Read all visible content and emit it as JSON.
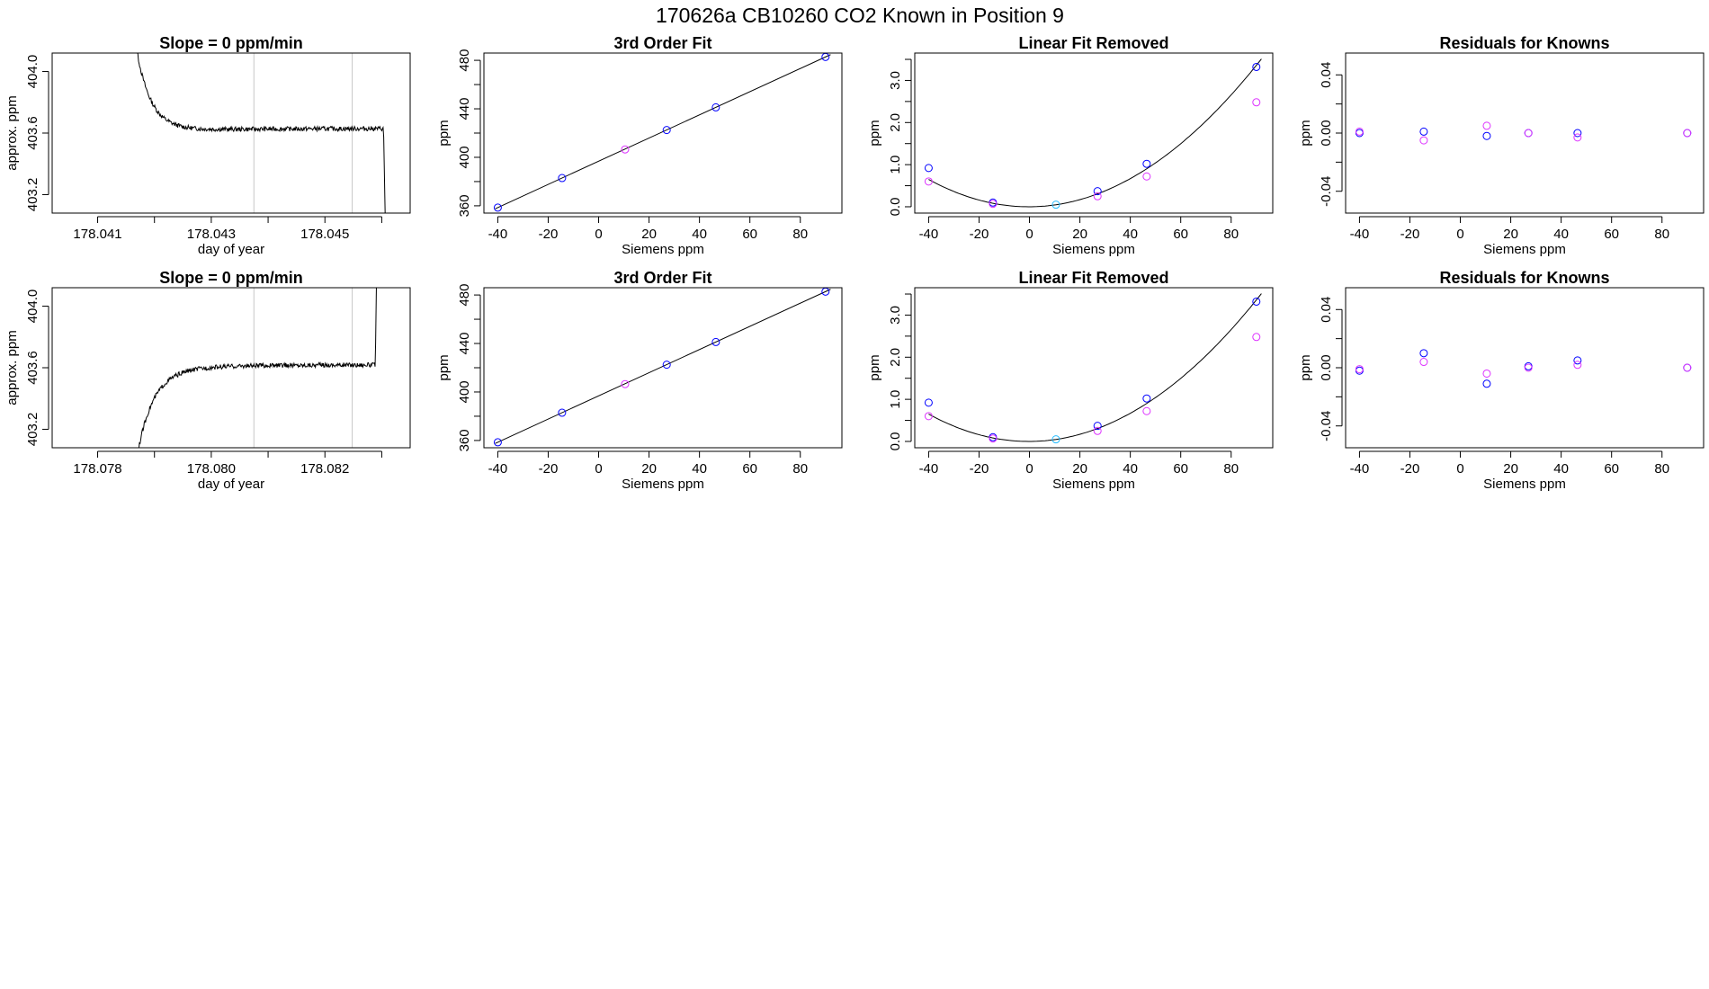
{
  "page": {
    "title": "170626a     CB10260    CO2 Known in Position  9"
  },
  "colors": {
    "axis": "#000000",
    "trace": "#000000",
    "marker_line": "#c8c8c8",
    "point_a": "#0000ff",
    "point_b": "#dd33ff",
    "point_c": "#22bbff"
  },
  "chart_data": [
    {
      "type": "line",
      "title": "Slope =  0  ppm/min",
      "xlabel": "day of year",
      "ylabel": "approx. ppm",
      "xlim": [
        178.0402,
        178.0465
      ],
      "ylim": [
        403.08,
        404.12
      ],
      "xticks": [
        178.041,
        178.042,
        178.043,
        178.044,
        178.045,
        178.046
      ],
      "xtick_labels": [
        "178.041",
        "",
        "178.043",
        "",
        "178.045",
        ""
      ],
      "yticks": [
        403.2,
        403.6,
        404.0
      ],
      "ytick_labels": [
        "403.2",
        "403.6",
        "404.0"
      ],
      "vlines": [
        178.04375,
        178.04548
      ],
      "trace_profile": "decay",
      "trace_steady": 403.63,
      "trace_start": 178.0415,
      "trace_end": 178.0461
    },
    {
      "type": "scatter",
      "title": "3rd Order Fit",
      "xlabel": "Siemens ppm",
      "ylabel": "ppm",
      "xlim": [
        -45.5,
        96.5
      ],
      "ylim": [
        354,
        486
      ],
      "xticks": [
        -40,
        -20,
        0,
        20,
        40,
        60,
        80
      ],
      "xtick_labels": [
        "-40",
        "-20",
        "0",
        "20",
        "40",
        "60",
        "80"
      ],
      "yticks": [
        360,
        380,
        400,
        420,
        440,
        460,
        480
      ],
      "ytick_labels": [
        "360",
        "",
        "400",
        "",
        "440",
        "",
        "480"
      ],
      "fit": {
        "kind": "line",
        "x0": -41,
        "y0": 357.6,
        "x1": 92,
        "y1": 484.7
      },
      "series": [
        {
          "color": "point_a",
          "points": [
            [
              -40,
              358.5
            ],
            [
              -14.5,
              382.9
            ],
            [
              27,
              422.5
            ],
            [
              46.5,
              441.2
            ],
            [
              90,
              482.8
            ]
          ]
        },
        {
          "color": "point_b",
          "points": [
            [
              10.5,
              406.5
            ]
          ]
        }
      ]
    },
    {
      "type": "scatter",
      "title": "Linear Fit Removed",
      "xlabel": "Siemens ppm",
      "ylabel": "ppm",
      "xlim": [
        -45.5,
        96.5
      ],
      "ylim": [
        -0.15,
        3.65
      ],
      "xticks": [
        -40,
        -20,
        0,
        20,
        40,
        60,
        80
      ],
      "xtick_labels": [
        "-40",
        "-20",
        "0",
        "20",
        "40",
        "60",
        "80"
      ],
      "yticks": [
        0.0,
        0.5,
        1.0,
        1.5,
        2.0,
        2.5,
        3.0,
        3.5
      ],
      "ytick_labels": [
        "0.0",
        "",
        "1.0",
        "",
        "2.0",
        "",
        "3.0",
        ""
      ],
      "fit": {
        "kind": "quadratic",
        "a": 0.000412,
        "h": -0.3,
        "k": 0.0,
        "from": -40,
        "to": 92
      },
      "series": [
        {
          "color": "point_a",
          "points": [
            [
              -40,
              0.92
            ],
            [
              -14.5,
              0.1
            ],
            [
              27,
              0.37
            ],
            [
              46.5,
              1.02
            ],
            [
              90,
              3.32
            ]
          ]
        },
        {
          "color": "point_b",
          "points": [
            [
              -40,
              0.6
            ],
            [
              -14.5,
              0.07
            ],
            [
              27,
              0.25
            ],
            [
              46.5,
              0.72
            ],
            [
              90,
              2.48
            ]
          ]
        },
        {
          "color": "point_c",
          "points": [
            [
              10.5,
              0.05
            ]
          ]
        }
      ]
    },
    {
      "type": "scatter",
      "title": "Residuals for Knowns",
      "xlabel": "Siemens ppm",
      "ylabel": "ppm",
      "xlim": [
        -45.5,
        96.5
      ],
      "ylim": [
        -0.055,
        0.055
      ],
      "xticks": [
        -40,
        -20,
        0,
        20,
        40,
        60,
        80
      ],
      "xtick_labels": [
        "-40",
        "-20",
        "0",
        "20",
        "40",
        "60",
        "80"
      ],
      "yticks": [
        -0.04,
        -0.02,
        0.0,
        0.02,
        0.04
      ],
      "ytick_labels": [
        "-0.04",
        "",
        "0.00",
        "",
        "0.04"
      ],
      "series": [
        {
          "color": "point_a",
          "points": [
            [
              -40,
              0.0
            ],
            [
              -14.5,
              0.001
            ],
            [
              10.5,
              -0.002
            ],
            [
              27,
              0.0
            ],
            [
              46.5,
              0.0
            ],
            [
              90,
              0.0
            ]
          ]
        },
        {
          "color": "point_b",
          "points": [
            [
              -40,
              0.001
            ],
            [
              -14.5,
              -0.005
            ],
            [
              10.5,
              0.005
            ],
            [
              27,
              0.0
            ],
            [
              46.5,
              -0.003
            ],
            [
              90,
              0.0
            ]
          ]
        }
      ]
    },
    {
      "type": "line",
      "title": "Slope =  0  ppm/min",
      "xlabel": "day of year",
      "ylabel": "approx. ppm",
      "xlim": [
        178.0772,
        178.0835
      ],
      "ylim": [
        403.08,
        404.12
      ],
      "xticks": [
        178.078,
        178.079,
        178.08,
        178.081,
        178.082,
        178.083
      ],
      "xtick_labels": [
        "178.078",
        "",
        "178.080",
        "",
        "178.082",
        ""
      ],
      "yticks": [
        403.2,
        403.6,
        404.0
      ],
      "ytick_labels": [
        "403.2",
        "403.6",
        "404.0"
      ],
      "vlines": [
        178.08075,
        178.08248
      ],
      "trace_profile": "rise",
      "trace_steady": 403.62,
      "trace_start": 178.0785,
      "trace_end": 178.083
    },
    {
      "type": "scatter",
      "title": "3rd Order Fit",
      "xlabel": "Siemens ppm",
      "ylabel": "ppm",
      "xlim": [
        -45.5,
        96.5
      ],
      "ylim": [
        354,
        486
      ],
      "xticks": [
        -40,
        -20,
        0,
        20,
        40,
        60,
        80
      ],
      "xtick_labels": [
        "-40",
        "-20",
        "0",
        "20",
        "40",
        "60",
        "80"
      ],
      "yticks": [
        360,
        380,
        400,
        420,
        440,
        460,
        480
      ],
      "ytick_labels": [
        "360",
        "",
        "400",
        "",
        "440",
        "",
        "480"
      ],
      "fit": {
        "kind": "line",
        "x0": -41,
        "y0": 357.6,
        "x1": 92,
        "y1": 484.7
      },
      "series": [
        {
          "color": "point_a",
          "points": [
            [
              -40,
              358.5
            ],
            [
              -14.5,
              382.9
            ],
            [
              27,
              422.5
            ],
            [
              46.5,
              441.2
            ],
            [
              90,
              482.8
            ]
          ]
        },
        {
          "color": "point_b",
          "points": [
            [
              10.5,
              406.5
            ]
          ]
        }
      ]
    },
    {
      "type": "scatter",
      "title": "Linear Fit Removed",
      "xlabel": "Siemens ppm",
      "ylabel": "ppm",
      "xlim": [
        -45.5,
        96.5
      ],
      "ylim": [
        -0.15,
        3.65
      ],
      "xticks": [
        -40,
        -20,
        0,
        20,
        40,
        60,
        80
      ],
      "xtick_labels": [
        "-40",
        "-20",
        "0",
        "20",
        "40",
        "60",
        "80"
      ],
      "yticks": [
        0.0,
        0.5,
        1.0,
        1.5,
        2.0,
        2.5,
        3.0,
        3.5
      ],
      "ytick_labels": [
        "0.0",
        "",
        "1.0",
        "",
        "2.0",
        "",
        "3.0",
        ""
      ],
      "fit": {
        "kind": "quadratic",
        "a": 0.000412,
        "h": -0.3,
        "k": 0.0,
        "from": -40,
        "to": 92
      },
      "series": [
        {
          "color": "point_a",
          "points": [
            [
              -40,
              0.92
            ],
            [
              -14.5,
              0.1
            ],
            [
              27,
              0.37
            ],
            [
              46.5,
              1.02
            ],
            [
              90,
              3.32
            ]
          ]
        },
        {
          "color": "point_b",
          "points": [
            [
              -40,
              0.6
            ],
            [
              -14.5,
              0.07
            ],
            [
              27,
              0.25
            ],
            [
              46.5,
              0.72
            ],
            [
              90,
              2.48
            ]
          ]
        },
        {
          "color": "point_c",
          "points": [
            [
              10.5,
              0.05
            ]
          ]
        }
      ]
    },
    {
      "type": "scatter",
      "title": "Residuals for Knowns",
      "xlabel": "Siemens ppm",
      "ylabel": "ppm",
      "xlim": [
        -45.5,
        96.5
      ],
      "ylim": [
        -0.055,
        0.055
      ],
      "xticks": [
        -40,
        -20,
        0,
        20,
        40,
        60,
        80
      ],
      "xtick_labels": [
        "-40",
        "-20",
        "0",
        "20",
        "40",
        "60",
        "80"
      ],
      "yticks": [
        -0.04,
        -0.02,
        0.0,
        0.02,
        0.04
      ],
      "ytick_labels": [
        "-0.04",
        "",
        "0.00",
        "",
        "0.04"
      ],
      "series": [
        {
          "color": "point_a",
          "points": [
            [
              -40,
              -0.002
            ],
            [
              -14.5,
              0.01
            ],
            [
              10.5,
              -0.011
            ],
            [
              27,
              0.001
            ],
            [
              46.5,
              0.005
            ],
            [
              90,
              0.0
            ]
          ]
        },
        {
          "color": "point_b",
          "points": [
            [
              -40,
              -0.001
            ],
            [
              -14.5,
              0.004
            ],
            [
              10.5,
              -0.004
            ],
            [
              27,
              0.0
            ],
            [
              46.5,
              0.002
            ],
            [
              90,
              0.0
            ]
          ]
        }
      ]
    }
  ]
}
